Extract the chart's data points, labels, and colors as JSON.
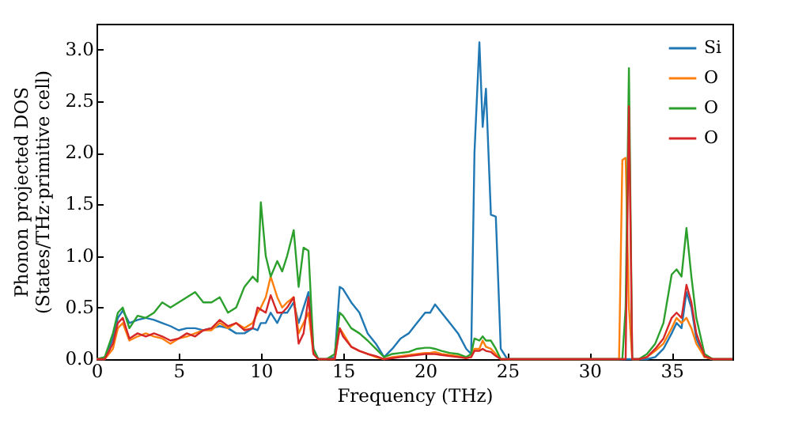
{
  "chart_data": {
    "type": "line",
    "xlabel": "Frequency (THz)",
    "ylabel": "Phonon projected DOS\n(States/THz·primitive cell)",
    "x": [
      0,
      0.5,
      1,
      1.3,
      1.6,
      2,
      2.5,
      3,
      3.5,
      4,
      4.5,
      5,
      5.5,
      6,
      6.5,
      7,
      7.5,
      8,
      8.5,
      9,
      9.5,
      9.8,
      10,
      10.3,
      10.6,
      11,
      11.3,
      11.6,
      12,
      12.3,
      12.6,
      12.9,
      13.2,
      13.5,
      14,
      14.5,
      14.8,
      15,
      15.5,
      16,
      16.5,
      17,
      17.5,
      18,
      18.5,
      19,
      19.5,
      20,
      20.3,
      20.6,
      21,
      21.5,
      22,
      22.5,
      22.8,
      23,
      23.3,
      23.5,
      23.7,
      24,
      24.3,
      24.6,
      25,
      30,
      31.8,
      32,
      32.2,
      32.4,
      32.6,
      33,
      33.5,
      34,
      34.5,
      35,
      35.3,
      35.6,
      35.9,
      36.2,
      36.5,
      37,
      37.5,
      38.7
    ],
    "series": [
      {
        "name": "Si",
        "color": "#1f77b4",
        "values": [
          0,
          0,
          0.2,
          0.4,
          0.47,
          0.35,
          0.38,
          0.4,
          0.38,
          0.35,
          0.32,
          0.28,
          0.3,
          0.3,
          0.28,
          0.3,
          0.32,
          0.3,
          0.25,
          0.25,
          0.3,
          0.28,
          0.35,
          0.35,
          0.45,
          0.35,
          0.45,
          0.45,
          0.55,
          0.35,
          0.5,
          0.65,
          0.1,
          0,
          0,
          0.02,
          0.7,
          0.68,
          0.55,
          0.45,
          0.25,
          0.15,
          0.02,
          0.1,
          0.2,
          0.25,
          0.35,
          0.45,
          0.45,
          0.53,
          0.45,
          0.35,
          0.25,
          0.1,
          0.05,
          2.0,
          3.07,
          2.25,
          2.62,
          1.4,
          1.38,
          0.1,
          0,
          0,
          0,
          0,
          0,
          0,
          0,
          0,
          0,
          0.02,
          0.1,
          0.25,
          0.35,
          0.3,
          0.65,
          0.5,
          0.2,
          0.02,
          0,
          0
        ]
      },
      {
        "name": "O",
        "color": "#ff7f0e",
        "values": [
          0,
          0,
          0.1,
          0.3,
          0.35,
          0.18,
          0.22,
          0.25,
          0.22,
          0.2,
          0.15,
          0.2,
          0.22,
          0.25,
          0.28,
          0.28,
          0.35,
          0.3,
          0.35,
          0.3,
          0.35,
          0.45,
          0.5,
          0.6,
          0.8,
          0.6,
          0.5,
          0.55,
          0.6,
          0.25,
          0.35,
          0.45,
          0.05,
          0,
          0,
          0,
          0.3,
          0.25,
          0.12,
          0.08,
          0.05,
          0.02,
          0,
          0.02,
          0.03,
          0.04,
          0.05,
          0.06,
          0.06,
          0.07,
          0.05,
          0.04,
          0.03,
          0.01,
          0.02,
          0.1,
          0.1,
          0.18,
          0.12,
          0.1,
          0.05,
          0,
          0,
          0,
          0,
          1.93,
          1.95,
          0.5,
          0,
          0,
          0.02,
          0.08,
          0.15,
          0.3,
          0.4,
          0.35,
          0.4,
          0.3,
          0.15,
          0.02,
          0,
          0
        ]
      },
      {
        "name": "O",
        "color": "#2ca02c",
        "values": [
          0,
          0.02,
          0.25,
          0.45,
          0.5,
          0.3,
          0.42,
          0.4,
          0.45,
          0.55,
          0.5,
          0.55,
          0.6,
          0.65,
          0.55,
          0.55,
          0.6,
          0.45,
          0.5,
          0.7,
          0.8,
          0.75,
          1.52,
          1.0,
          0.8,
          0.95,
          0.85,
          1.0,
          1.25,
          0.7,
          1.08,
          1.05,
          0.1,
          0,
          0,
          0.05,
          0.45,
          0.42,
          0.3,
          0.25,
          0.18,
          0.1,
          0.02,
          0.05,
          0.06,
          0.07,
          0.1,
          0.11,
          0.11,
          0.1,
          0.08,
          0.06,
          0.05,
          0.02,
          0.05,
          0.2,
          0.18,
          0.22,
          0.18,
          0.18,
          0.1,
          0,
          0,
          0,
          0,
          0,
          0.5,
          2.82,
          0,
          0,
          0.05,
          0.15,
          0.35,
          0.82,
          0.87,
          0.8,
          1.27,
          0.8,
          0.4,
          0.05,
          0,
          0
        ]
      },
      {
        "name": "O",
        "color": "#d62728",
        "values": [
          0,
          0,
          0.15,
          0.35,
          0.4,
          0.2,
          0.25,
          0.22,
          0.25,
          0.22,
          0.18,
          0.2,
          0.25,
          0.22,
          0.28,
          0.3,
          0.38,
          0.32,
          0.35,
          0.28,
          0.3,
          0.5,
          0.48,
          0.45,
          0.62,
          0.45,
          0.45,
          0.5,
          0.6,
          0.15,
          0.25,
          0.6,
          0.05,
          0,
          0,
          0,
          0.3,
          0.22,
          0.12,
          0.08,
          0.05,
          0.03,
          0,
          0.01,
          0.02,
          0.03,
          0.04,
          0.05,
          0.05,
          0.05,
          0.04,
          0.03,
          0.02,
          0.01,
          0.02,
          0.08,
          0.08,
          0.1,
          0.08,
          0.07,
          0.03,
          0,
          0,
          0,
          0,
          0,
          0,
          2.45,
          0,
          0,
          0.02,
          0.1,
          0.2,
          0.4,
          0.45,
          0.4,
          0.72,
          0.55,
          0.25,
          0.03,
          0,
          0
        ]
      }
    ],
    "xlim": [
      0,
      38.7
    ],
    "xticks": [
      0,
      5,
      10,
      15,
      20,
      25,
      30,
      35
    ],
    "ylim": [
      0,
      3.25
    ],
    "yticks": [
      {
        "value": 0,
        "label": "0.0"
      },
      0.5,
      {
        "value": 1,
        "label": "1.0"
      },
      1.5,
      {
        "value": 2,
        "label": "2.0"
      },
      2.5,
      {
        "value": 3,
        "label": "3.0"
      }
    ],
    "grid": false,
    "legend": "top right",
    "marker": "none",
    "line_style": "solid"
  }
}
